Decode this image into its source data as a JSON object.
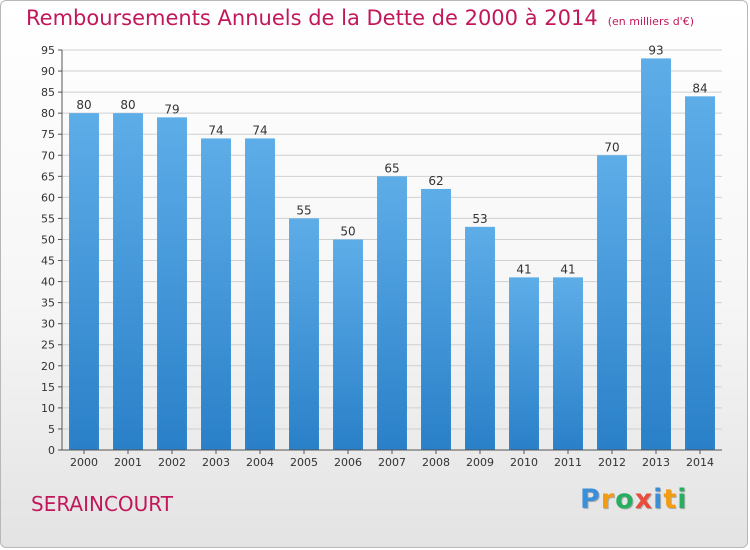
{
  "chart_data": {
    "type": "bar",
    "title": "Remboursements Annuels de la Dette de 2000 à 2014",
    "subtitle": "(en milliers d'€)",
    "categories": [
      "2000",
      "2001",
      "2002",
      "2003",
      "2004",
      "2005",
      "2006",
      "2007",
      "2008",
      "2009",
      "2010",
      "2011",
      "2012",
      "2013",
      "2014"
    ],
    "values": [
      80,
      80,
      79,
      74,
      74,
      55,
      50,
      65,
      62,
      53,
      41,
      41,
      70,
      93,
      84
    ],
    "ylim": [
      0,
      95
    ],
    "yticks": [
      0,
      5,
      10,
      15,
      20,
      25,
      30,
      35,
      40,
      45,
      50,
      55,
      60,
      65,
      70,
      75,
      80,
      85,
      90,
      95
    ],
    "grid": true,
    "xlabel": "",
    "ylabel": "",
    "colors": {
      "bar_top": "#5dade8",
      "bar_bottom": "#2a80c8",
      "title": "#c2185b"
    }
  },
  "footer": {
    "city": "SERAINCOURT",
    "brand": [
      "P",
      "r",
      "o",
      "x",
      "i",
      "t",
      "i"
    ],
    "brand_colors": [
      "#3a8fd8",
      "#f39c12",
      "#27ae60",
      "#e74c3c",
      "#3a8fd8",
      "#f39c12",
      "#27ae60"
    ]
  }
}
